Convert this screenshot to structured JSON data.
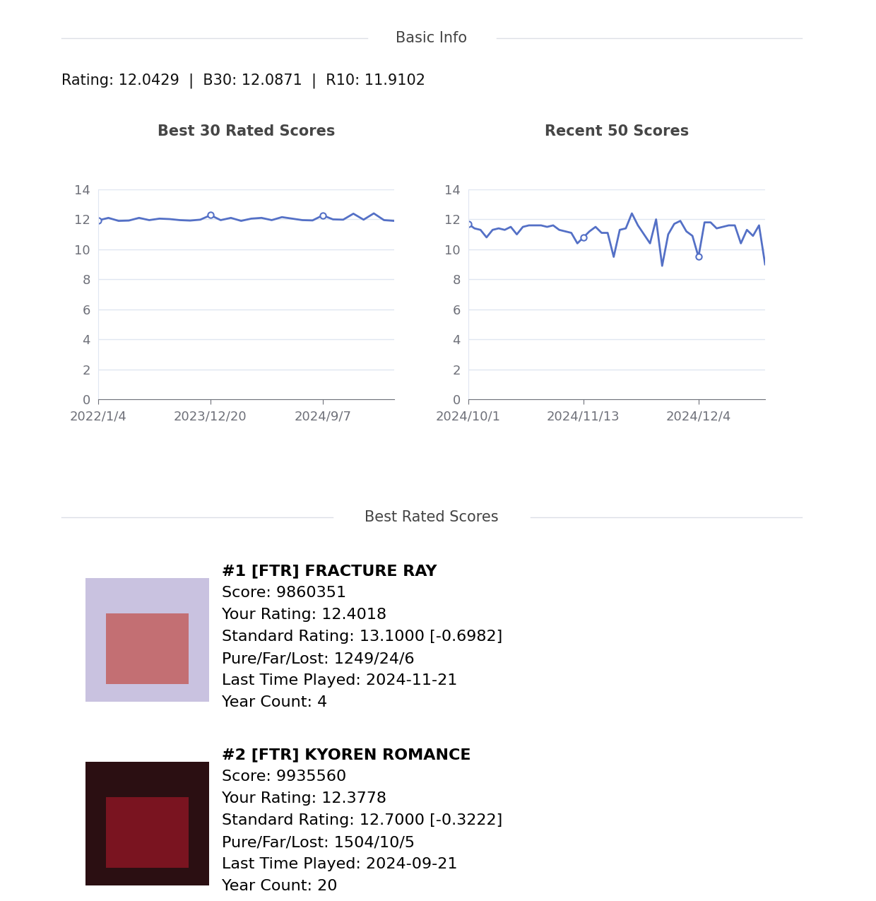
{
  "basic_info": {
    "section": "Basic Info",
    "summary": "Rating: 12.0429  |  B30: 12.0871  |  R10: 11.9102"
  },
  "chart_data": [
    {
      "type": "line",
      "title": "Best 30 Rated Scores",
      "categories": [
        "2022/1/4",
        null,
        null,
        null,
        null,
        null,
        null,
        null,
        null,
        null,
        null,
        "2023/12/20",
        null,
        null,
        null,
        null,
        null,
        null,
        null,
        null,
        null,
        null,
        "2024/9/7",
        null,
        null,
        null,
        null,
        null,
        null,
        null
      ],
      "values": [
        11.93,
        12.1,
        11.9,
        11.92,
        12.1,
        11.95,
        12.05,
        12.02,
        11.95,
        11.92,
        11.98,
        12.28,
        11.95,
        12.1,
        11.9,
        12.05,
        12.1,
        11.95,
        12.15,
        12.05,
        11.95,
        11.93,
        12.27,
        12.0,
        11.98,
        12.38,
        11.98,
        12.4,
        11.95,
        11.9
      ],
      "color": "#5470c6",
      "ylim": [
        0,
        14
      ],
      "yticks": [
        0,
        2,
        4,
        6,
        8,
        10,
        12,
        14
      ],
      "grid": true,
      "marker": "circle",
      "line_style": "solid"
    },
    {
      "type": "line",
      "title": "Recent 50 Scores",
      "categories": [
        "2024/10/1",
        null,
        null,
        null,
        null,
        null,
        null,
        null,
        null,
        null,
        null,
        null,
        null,
        null,
        null,
        null,
        null,
        null,
        null,
        "2024/11/13",
        null,
        null,
        null,
        null,
        null,
        null,
        null,
        null,
        null,
        null,
        null,
        null,
        null,
        null,
        null,
        null,
        null,
        null,
        "2024/12/4",
        null,
        null,
        null,
        null,
        null,
        null,
        null,
        null,
        null,
        null,
        null
      ],
      "values": [
        11.7,
        11.4,
        11.3,
        10.8,
        11.3,
        11.4,
        11.3,
        11.5,
        11.0,
        11.5,
        11.6,
        11.6,
        11.6,
        11.5,
        11.6,
        11.3,
        11.2,
        11.1,
        10.4,
        10.8,
        11.2,
        11.5,
        11.1,
        11.1,
        9.5,
        11.3,
        11.4,
        12.4,
        11.6,
        11.0,
        10.4,
        12.0,
        8.9,
        11.0,
        11.7,
        11.9,
        11.2,
        10.9,
        9.5,
        11.8,
        11.8,
        11.4,
        11.5,
        11.6,
        11.6,
        10.4,
        11.3,
        10.9,
        11.6,
        9.0
      ],
      "color": "#5470c6",
      "ylim": [
        0,
        14
      ],
      "yticks": [
        0,
        2,
        4,
        6,
        8,
        10,
        12,
        14
      ],
      "grid": true,
      "marker": "circle",
      "line_style": "solid"
    }
  ],
  "best_rated_scores": {
    "section": "Best Rated Scores",
    "entries": [
      {
        "heading": "#1 [FTR] FRACTURE RAY",
        "lines": [
          "Score: 9860351",
          "Your Rating: 12.4018",
          "Standard Rating: 13.1000 [-0.6982]",
          "Pure/Far/Lost: 1249/24/6",
          "Last Time Played: 2024-11-21",
          "Year Count: 4"
        ]
      },
      {
        "heading": "#2 [FTR] KYOREN ROMANCE",
        "lines": [
          "Score: 9935560",
          "Your Rating: 12.3778",
          "Standard Rating: 12.7000 [-0.3222]",
          "Pure/Far/Lost: 1504/10/5",
          "Last Time Played: 2024-09-21",
          "Year Count: 20"
        ]
      }
    ]
  }
}
